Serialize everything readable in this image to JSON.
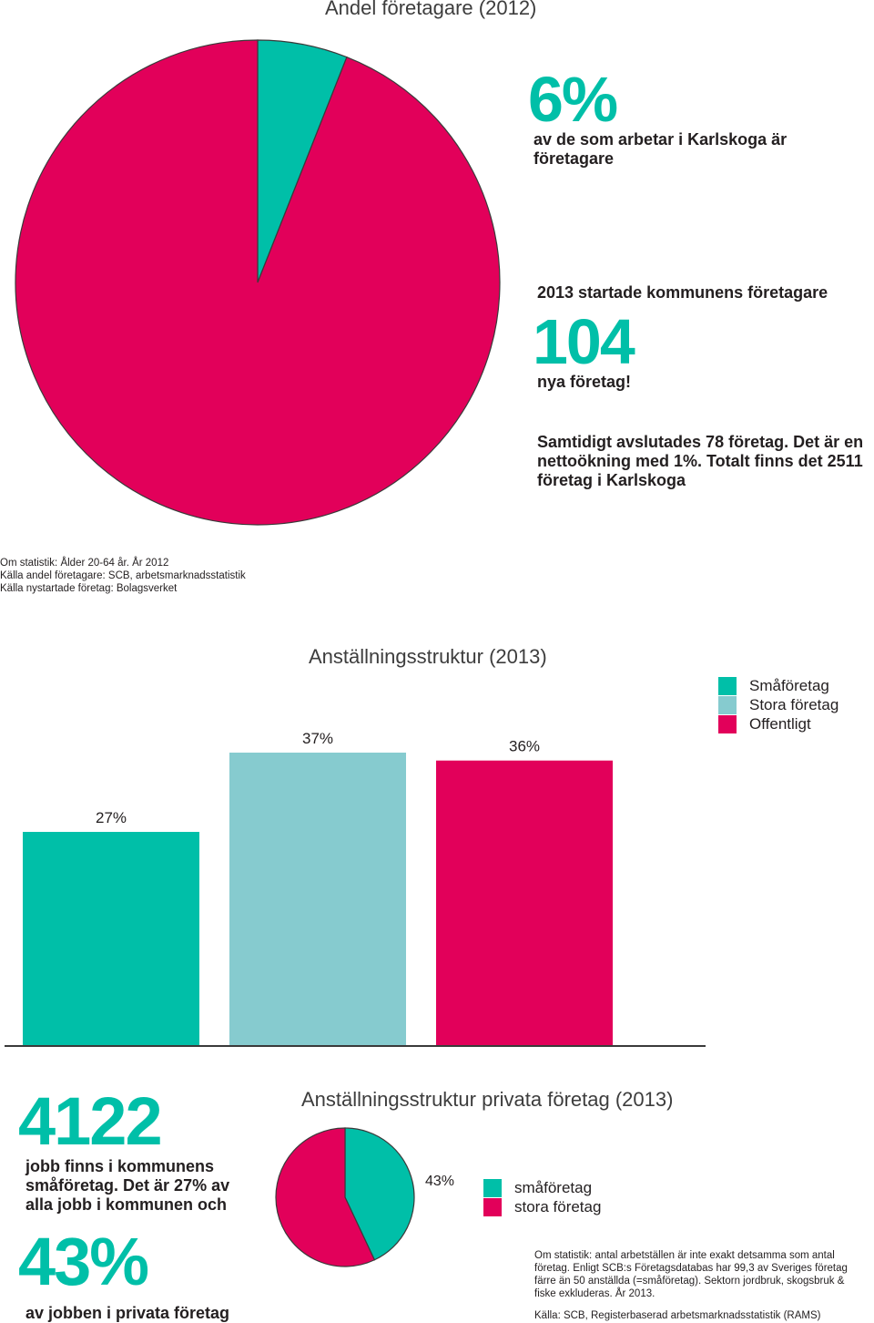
{
  "top": {
    "title": "Andel företagare (2012)",
    "pct": "6%",
    "pct_desc": "av de som arbetar i Karlskoga är företagare",
    "started_label": "2013 startade kommunens företagare",
    "started_number": "104",
    "started_suffix": "nya företag!",
    "closed_text": "Samtidigt avslutades 78 företag. Det är en nettoökning med 1%. Totalt finns det 2511 företag i Karlskoga",
    "sources": [
      "Om statistik: Ålder 20-64 år. År 2012",
      "Källa andel företagare: SCB, arbetsmarknadsstatistik",
      "Källa nystartade företag: Bolagsverket"
    ]
  },
  "bottom": {
    "jobs_number": "4122",
    "jobs_text": "jobb finns i kommunens småföretag. Det är 27% av alla jobb i kommunen och",
    "pct_private": "43%",
    "pct_private_text": "av jobben i privata företag",
    "about": "Om statistik: antal arbetställen är inte exakt detsamma som antal företag. Enligt SCB:s Företagsdatabas har 99,3 av Sveriges företag färre än 50 anställda (=småföretag). Sektorn jordbruk, skogsbruk & fiske exkluderas. År 2013.",
    "source": "Källa: SCB, Registerbaserad arbetsmarknadsstatistik (RAMS)"
  },
  "colors": {
    "teal": "#00bfa8",
    "light_teal": "#86cbcf",
    "pink": "#e2005a",
    "text": "#231f20"
  },
  "chart_data": [
    {
      "type": "pie",
      "title": "Andel företagare (2012)",
      "categories": [
        "",
        ""
      ],
      "values": [
        6,
        94
      ],
      "colors": [
        "#00bfa8",
        "#e2005a"
      ]
    },
    {
      "type": "bar",
      "title": "Anställningsstruktur (2013)",
      "categories": [
        "Småföretag",
        "Stora företag",
        "Offentligt"
      ],
      "values": [
        27,
        37,
        36
      ],
      "labels": [
        "27%",
        "37%",
        "36%"
      ],
      "colors": [
        "#00bfa8",
        "#86cbcf",
        "#e2005a"
      ],
      "ylim": [
        0,
        40
      ],
      "legend": [
        "Småföretag",
        "Stora företag",
        "Offentligt"
      ],
      "legend_position": "top-right"
    },
    {
      "type": "pie",
      "title": "Anställningsstruktur privata företag (2013)",
      "categories": [
        "småföretag",
        "stora företag"
      ],
      "values": [
        43,
        57
      ],
      "labels": [
        "43%",
        ""
      ],
      "colors": [
        "#00bfa8",
        "#e2005a"
      ],
      "legend": [
        "småföretag",
        "stora företag"
      ],
      "legend_position": "right"
    }
  ]
}
